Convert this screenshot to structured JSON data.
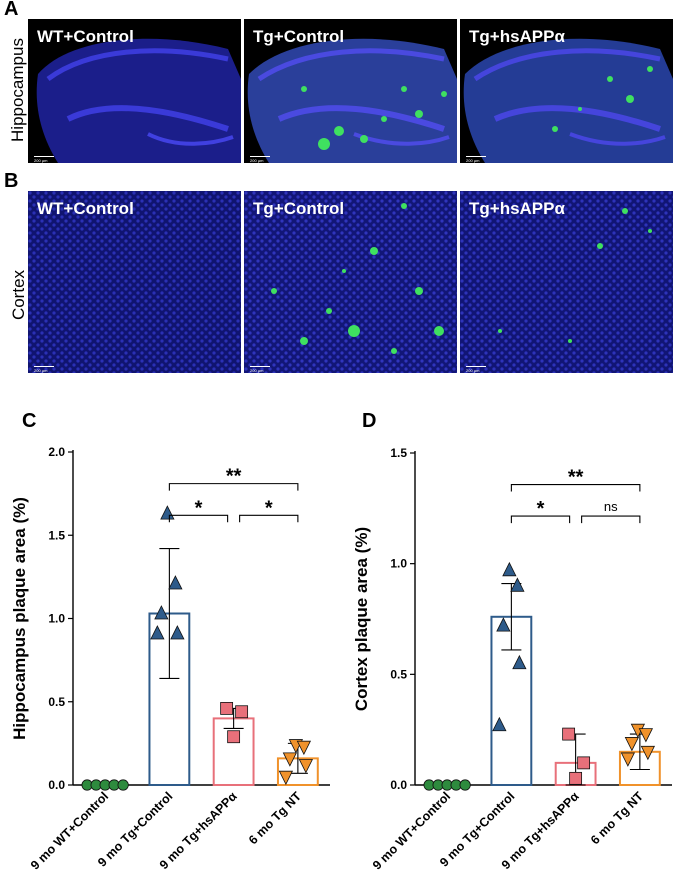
{
  "panels": {
    "A": "A",
    "B": "B",
    "C": "C",
    "D": "D"
  },
  "rows": {
    "hippocampus": "Hippocampus",
    "cortex": "Cortex"
  },
  "micrographs": {
    "labels": [
      "WT+Control",
      "Tg+Control",
      "Tg+hsAPPα"
    ],
    "scale_text": "200 µm"
  },
  "chart_data": [
    {
      "type": "bar",
      "panel": "C",
      "ylabel": "Hippocampus plaque area (%)",
      "ylim": [
        0,
        2.0
      ],
      "yticks": [
        "0.0",
        "0.5",
        "1.0",
        "1.5",
        "2.0"
      ],
      "categories": [
        "9 mo WT+Control",
        "9 mo Tg+Control",
        "9 mo Tg+hsAPPα",
        "6 mo Tg  NT"
      ],
      "colors": [
        "#2e8b3e",
        "#2e5b8a",
        "#e8707a",
        "#f0922b"
      ],
      "markers": [
        "circle",
        "triangle-up",
        "square",
        "triangle-down"
      ],
      "means": [
        0.0,
        1.03,
        0.4,
        0.16
      ],
      "sd": [
        0.0,
        0.39,
        0.06,
        0.09
      ],
      "points": [
        [
          0.0,
          0.0,
          0.0,
          0.0,
          0.0
        ],
        [
          1.63,
          1.21,
          1.03,
          0.91,
          0.91
        ],
        [
          0.46,
          0.44,
          0.29
        ],
        [
          0.24,
          0.23,
          0.16,
          0.12,
          0.05
        ]
      ],
      "significance": [
        {
          "from": 1,
          "to": 3,
          "label": "**"
        },
        {
          "from": 1,
          "to": 2,
          "label": "*"
        },
        {
          "from": 2,
          "to": 3,
          "label": "*"
        }
      ]
    },
    {
      "type": "bar",
      "panel": "D",
      "ylabel": "Cortex plaque area (%)",
      "ylim": [
        0,
        1.5
      ],
      "yticks": [
        "0.0",
        "0.5",
        "1.0",
        "1.5"
      ],
      "categories": [
        "9 mo WT+Control",
        "9 mo Tg+Control",
        "9 mo Tg+hsAPPα",
        "6 mo Tg  NT"
      ],
      "colors": [
        "#2e8b3e",
        "#2e5b8a",
        "#e8707a",
        "#f0922b"
      ],
      "markers": [
        "circle",
        "triangle-up",
        "square",
        "triangle-down"
      ],
      "means": [
        0.0,
        0.76,
        0.1,
        0.15
      ],
      "sd": [
        0.0,
        0.15,
        0.13,
        0.08
      ],
      "points": [
        [
          0.0,
          0.0,
          0.0,
          0.0,
          0.0
        ],
        [
          0.97,
          0.9,
          0.72,
          0.55,
          0.27
        ],
        [
          0.23,
          0.1,
          0.03
        ],
        [
          0.25,
          0.23,
          0.19,
          0.15,
          0.12
        ]
      ],
      "significance": [
        {
          "from": 1,
          "to": 3,
          "label": "**"
        },
        {
          "from": 1,
          "to": 2,
          "label": "*"
        },
        {
          "from": 2,
          "to": 3,
          "label": "ns"
        }
      ]
    }
  ]
}
